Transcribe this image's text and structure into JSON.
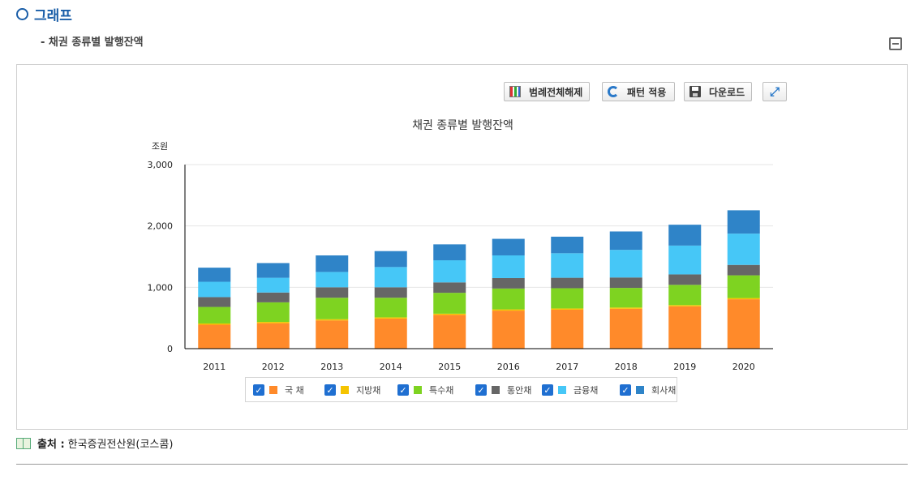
{
  "section": {
    "title": "그래프",
    "subtitle": "- 채권 종류별 발행잔액"
  },
  "toolbar": {
    "legend_toggle_label": "범례전체해제",
    "apply_pattern_label": "패턴 적용",
    "download_label": "다운로드",
    "expand_icon": "expand-icon"
  },
  "colors": {
    "section_title": "#1a5ea8",
    "checkbox": "#1f6fd1"
  },
  "chart_data": {
    "type": "bar",
    "stacked": true,
    "title": "채권 종류별 발행잔액",
    "ylabel": "조원",
    "xlabel": "",
    "ylim": [
      0,
      3000
    ],
    "yticks": [
      0,
      1000,
      2000,
      3000
    ],
    "ytick_labels": [
      "0",
      "1,000",
      "2,000",
      "3,000"
    ],
    "categories": [
      "2011",
      "2012",
      "2013",
      "2014",
      "2015",
      "2016",
      "2017",
      "2018",
      "2019",
      "2020"
    ],
    "series": [
      {
        "name": "국 채",
        "color": "#ff8a2a",
        "values": [
          390,
          415,
          460,
          490,
          550,
          620,
          635,
          650,
          690,
          805
        ]
      },
      {
        "name": "지방채",
        "color": "#f5c400",
        "values": [
          20,
          20,
          20,
          20,
          20,
          20,
          20,
          20,
          20,
          20
        ]
      },
      {
        "name": "특수채",
        "color": "#7ed321",
        "values": [
          270,
          320,
          350,
          320,
          340,
          340,
          330,
          320,
          330,
          370
        ]
      },
      {
        "name": "통안채",
        "color": "#666666",
        "values": [
          160,
          160,
          170,
          170,
          170,
          170,
          170,
          170,
          170,
          170
        ]
      },
      {
        "name": "금융채",
        "color": "#46c7f7",
        "values": [
          250,
          240,
          250,
          330,
          360,
          370,
          400,
          450,
          470,
          510
        ]
      },
      {
        "name": "회사채",
        "color": "#2f84c8",
        "values": [
          230,
          240,
          270,
          260,
          260,
          270,
          270,
          300,
          340,
          380
        ]
      }
    ],
    "legend_position": "bottom",
    "grid": true
  },
  "source": {
    "label": "출처 :",
    "text": "한국증권전산원(코스콤)"
  }
}
